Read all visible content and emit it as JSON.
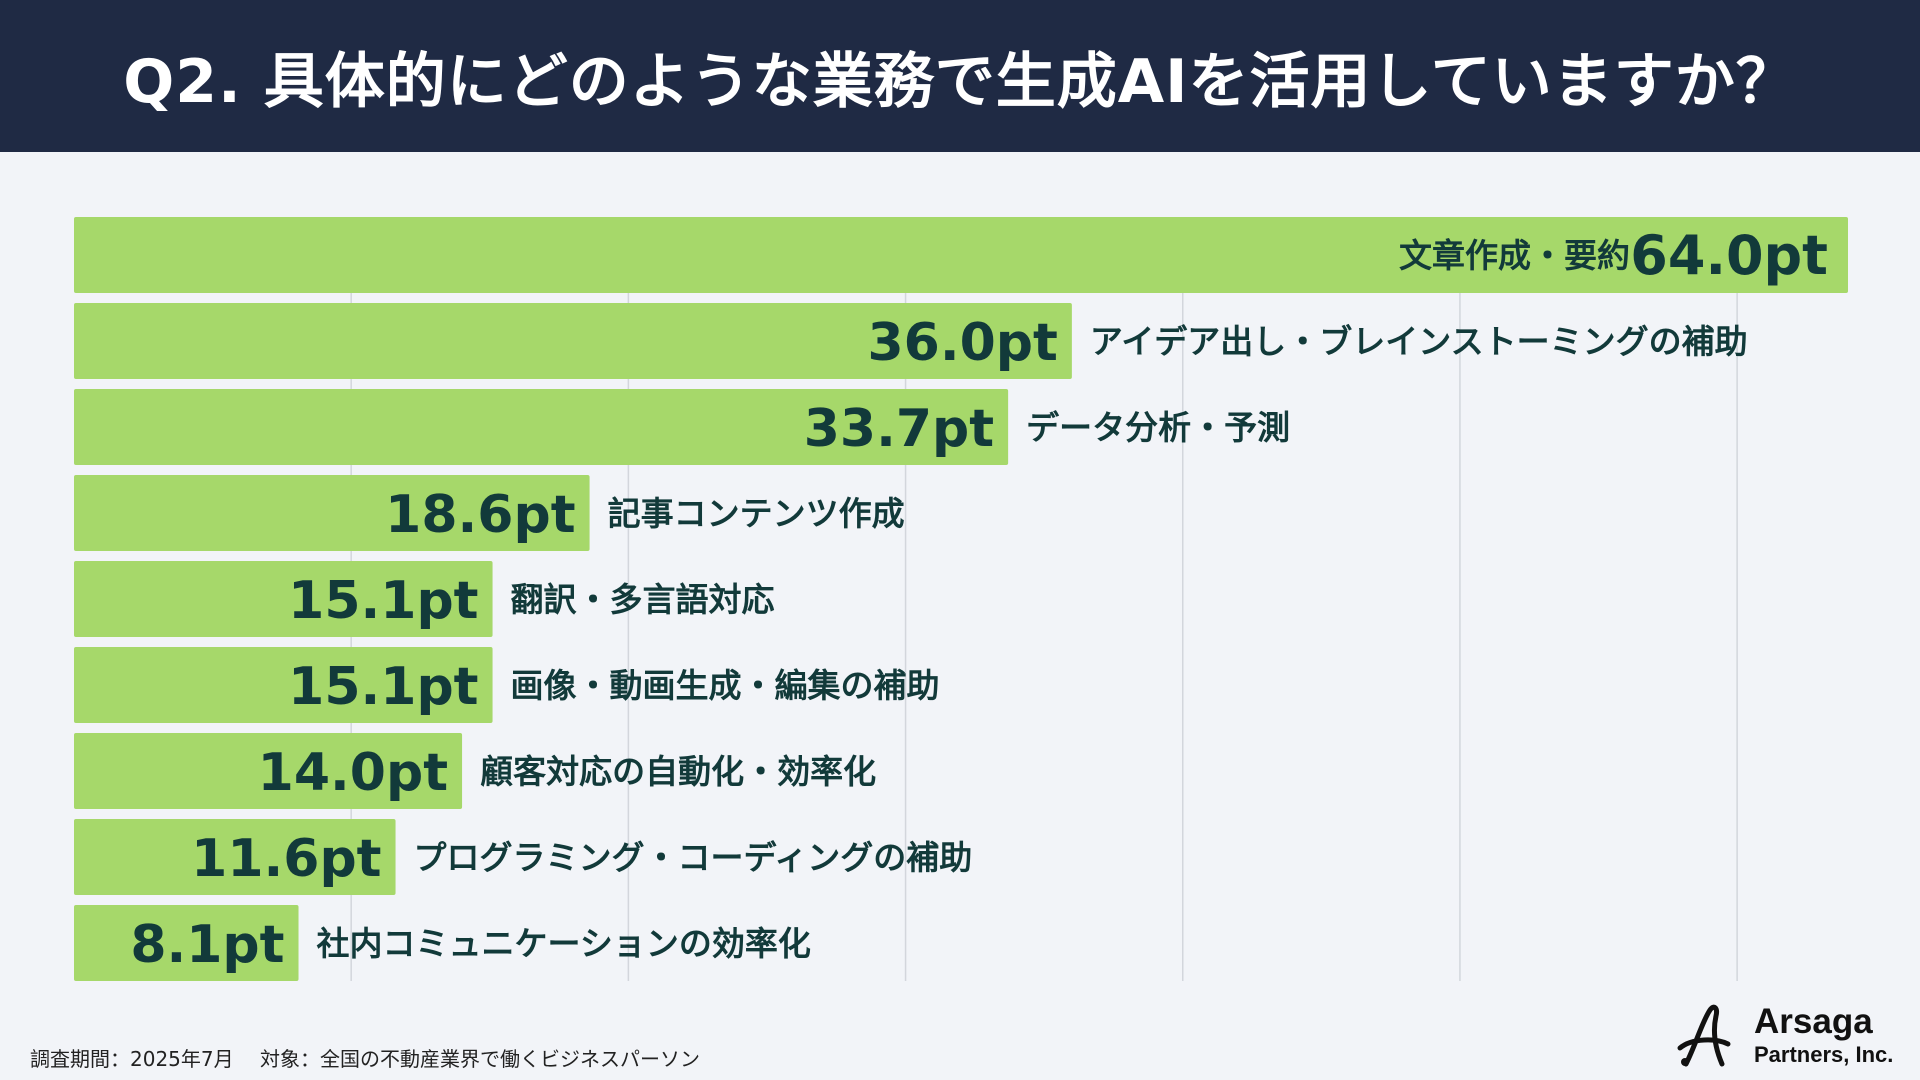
{
  "header": {
    "title": "Q2.  具体的にどのような業務で生成AIを活用していますか？"
  },
  "chart_data": {
    "type": "bar",
    "orientation": "horizontal",
    "categories": [
      "文章作成・要約",
      "アイデア出し・ブレインストーミングの補助",
      "データ分析・予測",
      "記事コンテンツ作成",
      "翻訳・多言語対応",
      "画像・動画生成・編集の補助",
      "顧客対応の自動化・効率化",
      "プログラミング・コーディングの補助",
      "社内コミュニケーションの効率化"
    ],
    "values": [
      64.0,
      36.0,
      33.7,
      18.6,
      15.1,
      15.1,
      14.0,
      11.6,
      8.1
    ],
    "value_labels": [
      "64.0pt",
      "36.0pt",
      "33.7pt",
      "18.6pt",
      "15.1pt",
      "15.1pt",
      "14.0pt",
      "11.6pt",
      "8.1pt"
    ],
    "xlim": [
      0,
      64
    ],
    "grid": true,
    "grid_step": 10,
    "bar_color": "#a6d86a",
    "label_color": "#123a3a",
    "grid_color": "#d3d6dc"
  },
  "footer": {
    "note": "調査期間：2025年7月　 対象：全国の不動産業界で働くビジネスパーソン"
  },
  "logo": {
    "line1": "Arsaga",
    "line2": "Partners, Inc."
  },
  "colors": {
    "header_bg": "#1f2a44",
    "page_bg": "#f2f4f8"
  }
}
